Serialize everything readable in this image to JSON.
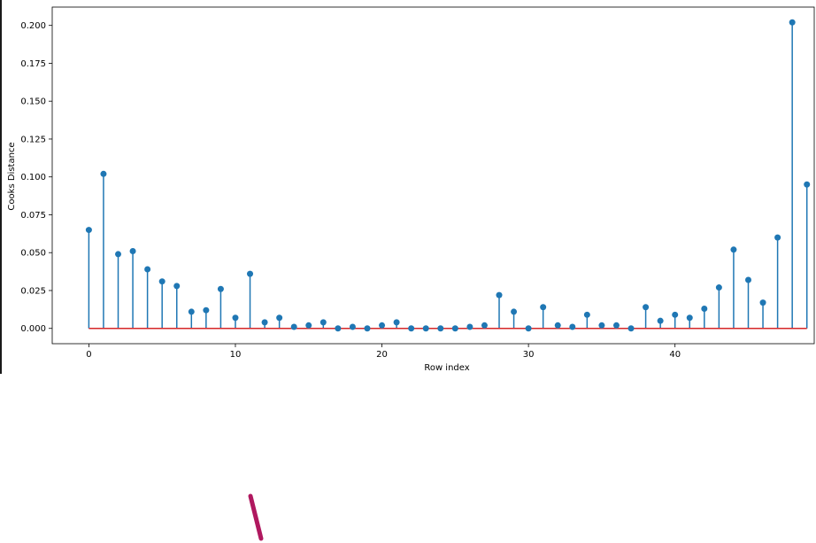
{
  "chart_data": {
    "type": "stem",
    "title": "",
    "xlabel": "Row index",
    "ylabel": "Cooks Distance",
    "xlim": [
      -2.5,
      49.5
    ],
    "ylim": [
      -0.0101,
      0.2121
    ],
    "xticks": [
      0,
      10,
      20,
      30,
      40
    ],
    "yticks": [
      0.0,
      0.025,
      0.05,
      0.075,
      0.1,
      0.125,
      0.15,
      0.175,
      0.2
    ],
    "ytick_labels": [
      "0.000",
      "0.025",
      "0.050",
      "0.075",
      "0.100",
      "0.125",
      "0.150",
      "0.175",
      "0.200"
    ],
    "baseline": 0,
    "x": [
      0,
      1,
      2,
      3,
      4,
      5,
      6,
      7,
      8,
      9,
      10,
      11,
      12,
      13,
      14,
      15,
      16,
      17,
      18,
      19,
      20,
      21,
      22,
      23,
      24,
      25,
      26,
      27,
      28,
      29,
      30,
      31,
      32,
      33,
      34,
      35,
      36,
      37,
      38,
      39,
      40,
      41,
      42,
      43,
      44,
      45,
      46,
      47,
      48,
      49
    ],
    "values": [
      0.065,
      0.102,
      0.049,
      0.051,
      0.039,
      0.031,
      0.028,
      0.011,
      0.012,
      0.026,
      0.007,
      0.036,
      0.004,
      0.007,
      0.001,
      0.002,
      0.004,
      0.0,
      0.001,
      0.0,
      0.002,
      0.004,
      0.0,
      0.0,
      0.0,
      0.0,
      0.001,
      0.002,
      0.022,
      0.011,
      0.0,
      0.014,
      0.002,
      0.001,
      0.009,
      0.002,
      0.002,
      0.0,
      0.014,
      0.005,
      0.009,
      0.007,
      0.013,
      0.027,
      0.052,
      0.032,
      0.017,
      0.06,
      0.202,
      0.095
    ],
    "grid": false,
    "colors": {
      "stem": "#1f77b4",
      "baseline": "#d62728",
      "axis": "#000000"
    }
  },
  "annotation": {
    "color": "#b0185f"
  }
}
